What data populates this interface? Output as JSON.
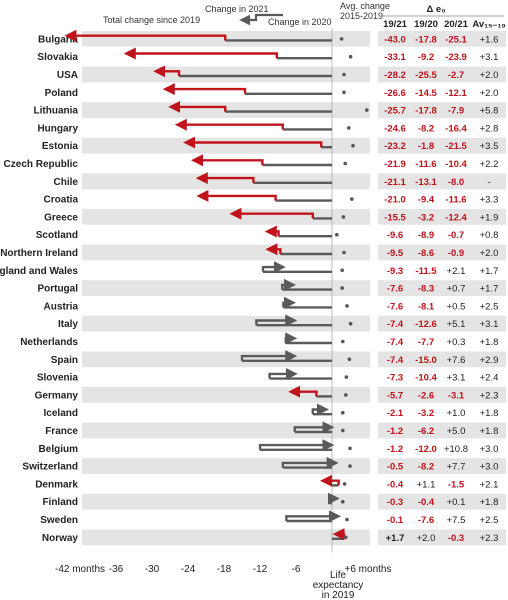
{
  "chart_data": {
    "type": "bar",
    "xlim": [
      -42,
      6
    ],
    "x_ticks": [
      {
        "value": -42,
        "label": "-42 months"
      },
      {
        "value": -36,
        "label": "-36"
      },
      {
        "value": -30,
        "label": "-30"
      },
      {
        "value": -24,
        "label": "-24"
      },
      {
        "value": -18,
        "label": "-18"
      },
      {
        "value": -12,
        "label": "-12"
      },
      {
        "value": -6,
        "label": "-6"
      },
      {
        "value": 6,
        "label": "+6 months"
      }
    ],
    "zero_label": [
      "Life",
      "expectancy",
      "in 2019"
    ],
    "legend": {
      "change_2021": "Change in 2021",
      "change_2020": "Change in 2020",
      "total_change": "Total change since 2019",
      "avg_change": [
        "Avg. change",
        "2015-2019"
      ]
    },
    "table_header": {
      "delta": "Δ e₀",
      "col1": "19/21",
      "col2": "19/20",
      "col3": "20/21",
      "col4": "Av₁₅₋₁₉"
    },
    "rows": [
      {
        "country": "Bulgaria",
        "change_2020": -17.8,
        "change_2021": -25.1,
        "total": -43.0,
        "avg": 1.6,
        "t1": "-43.0",
        "t2": "-17.8",
        "t3": "-25.1",
        "t4": "+1.6"
      },
      {
        "country": "Slovakia",
        "change_2020": -9.2,
        "change_2021": -23.9,
        "total": -33.1,
        "avg": 3.1,
        "t1": "-33.1",
        "t2": "-9.2",
        "t3": "-23.9",
        "t4": "+3.1"
      },
      {
        "country": "USA",
        "change_2020": -25.5,
        "change_2021": -2.7,
        "total": -28.2,
        "avg": 2.0,
        "t1": "-28.2",
        "t2": "-25.5",
        "t3": "-2.7",
        "t4": "+2.0"
      },
      {
        "country": "Poland",
        "change_2020": -14.5,
        "change_2021": -12.1,
        "total": -26.6,
        "avg": 2.0,
        "t1": "-26.6",
        "t2": "-14.5",
        "t3": "-12.1",
        "t4": "+2.0"
      },
      {
        "country": "Lithuania",
        "change_2020": -17.8,
        "change_2021": -7.9,
        "total": -25.7,
        "avg": 5.8,
        "t1": "-25.7",
        "t2": "-17.8",
        "t3": "-7.9",
        "t4": "+5.8"
      },
      {
        "country": "Hungary",
        "change_2020": -8.2,
        "change_2021": -16.4,
        "total": -24.6,
        "avg": 2.8,
        "t1": "-24.6",
        "t2": "-8.2",
        "t3": "-16.4",
        "t4": "+2.8"
      },
      {
        "country": "Estonia",
        "change_2020": -1.8,
        "change_2021": -21.5,
        "total": -23.2,
        "avg": 3.5,
        "t1": "-23.2",
        "t2": "-1.8",
        "t3": "-21.5",
        "t4": "+3.5"
      },
      {
        "country": "Czech Republic",
        "change_2020": -11.6,
        "change_2021": -10.4,
        "total": -21.9,
        "avg": 2.2,
        "t1": "-21.9",
        "t2": "-11.6",
        "t3": "-10.4",
        "t4": "+2.2"
      },
      {
        "country": "Chile",
        "change_2020": -13.1,
        "change_2021": -8.0,
        "total": -21.1,
        "avg": null,
        "t1": "-21.1",
        "t2": "-13.1",
        "t3": "-8.0",
        "t4": "-"
      },
      {
        "country": "Croatia",
        "change_2020": -9.4,
        "change_2021": -11.6,
        "total": -21.0,
        "avg": 3.3,
        "t1": "-21.0",
        "t2": "-9.4",
        "t3": "-11.6",
        "t4": "+3.3"
      },
      {
        "country": "Greece",
        "change_2020": -3.2,
        "change_2021": -12.4,
        "total": -15.5,
        "avg": 1.9,
        "t1": "-15.5",
        "t2": "-3.2",
        "t3": "-12.4",
        "t4": "+1.9"
      },
      {
        "country": "Scotland",
        "change_2020": -8.9,
        "change_2021": -0.7,
        "total": -9.6,
        "avg": 0.8,
        "t1": "-9.6",
        "t2": "-8.9",
        "t3": "-0.7",
        "t4": "+0.8"
      },
      {
        "country": "Northern Ireland",
        "change_2020": -8.6,
        "change_2021": -0.9,
        "total": -9.5,
        "avg": 2.0,
        "t1": "-9.5",
        "t2": "-8.6",
        "t3": "-0.9",
        "t4": "+2.0"
      },
      {
        "country": "England and Wales",
        "change_2020": -11.5,
        "change_2021": 2.1,
        "total": -9.3,
        "avg": 1.7,
        "t1": "-9.3",
        "t2": "-11.5",
        "t3": "+2.1",
        "t4": "+1.7"
      },
      {
        "country": "Portugal",
        "change_2020": -8.3,
        "change_2021": 0.7,
        "total": -7.6,
        "avg": 1.7,
        "t1": "-7.6",
        "t2": "-8.3",
        "t3": "+0.7",
        "t4": "+1.7"
      },
      {
        "country": "Austria",
        "change_2020": -8.1,
        "change_2021": 0.5,
        "total": -7.6,
        "avg": 2.5,
        "t1": "-7.6",
        "t2": "-8.1",
        "t3": "+0.5",
        "t4": "+2.5"
      },
      {
        "country": "Italy",
        "change_2020": -12.6,
        "change_2021": 5.1,
        "total": -7.4,
        "avg": 3.1,
        "t1": "-7.4",
        "t2": "-12.6",
        "t3": "+5.1",
        "t4": "+3.1"
      },
      {
        "country": "Netherlands",
        "change_2020": -7.7,
        "change_2021": 0.3,
        "total": -7.4,
        "avg": 1.8,
        "t1": "-7.4",
        "t2": "-7.7",
        "t3": "+0.3",
        "t4": "+1.8"
      },
      {
        "country": "Spain",
        "change_2020": -15.0,
        "change_2021": 7.6,
        "total": -7.4,
        "avg": 2.9,
        "t1": "-7.4",
        "t2": "-15.0",
        "t3": "+7.6",
        "t4": "+2.9"
      },
      {
        "country": "Slovenia",
        "change_2020": -10.4,
        "change_2021": 3.1,
        "total": -7.3,
        "avg": 2.4,
        "t1": "-7.3",
        "t2": "-10.4",
        "t3": "+3.1",
        "t4": "+2.4"
      },
      {
        "country": "Germany",
        "change_2020": -2.6,
        "change_2021": -3.1,
        "total": -5.7,
        "avg": 2.3,
        "t1": "-5.7",
        "t2": "-2.6",
        "t3": "-3.1",
        "t4": "+2.3"
      },
      {
        "country": "Iceland",
        "change_2020": -3.2,
        "change_2021": 1.0,
        "total": -2.1,
        "avg": 1.8,
        "t1": "-2.1",
        "t2": "-3.2",
        "t3": "+1.0",
        "t4": "+1.8"
      },
      {
        "country": "France",
        "change_2020": -6.2,
        "change_2021": 5.0,
        "total": -1.2,
        "avg": 1.8,
        "t1": "-1.2",
        "t2": "-6.2",
        "t3": "+5.0",
        "t4": "+1.8"
      },
      {
        "country": "Belgium",
        "change_2020": -12.0,
        "change_2021": 10.8,
        "total": -1.2,
        "avg": 3.0,
        "t1": "-1.2",
        "t2": "-12.0",
        "t3": "+10.8",
        "t4": "+3.0"
      },
      {
        "country": "Switzerland",
        "change_2020": -8.2,
        "change_2021": 7.7,
        "total": -0.5,
        "avg": 3.0,
        "t1": "-0.5",
        "t2": "-8.2",
        "t3": "+7.7",
        "t4": "+3.0"
      },
      {
        "country": "Denmark",
        "change_2020": 1.1,
        "change_2021": -1.5,
        "total": -0.4,
        "avg": 2.1,
        "t1": "-0.4",
        "t2": "+1.1",
        "t3": "-1.5",
        "t4": "+2.1"
      },
      {
        "country": "Finland",
        "change_2020": -0.4,
        "change_2021": 0.1,
        "total": -0.3,
        "avg": 1.8,
        "t1": "-0.3",
        "t2": "-0.4",
        "t3": "+0.1",
        "t4": "+1.8"
      },
      {
        "country": "Sweden",
        "change_2020": -7.6,
        "change_2021": 7.5,
        "total": -0.1,
        "avg": 2.5,
        "t1": "-0.1",
        "t2": "-7.6",
        "t3": "+7.5",
        "t4": "+2.5"
      },
      {
        "country": "Norway",
        "change_2020": 2.0,
        "change_2021": -0.3,
        "total": 1.7,
        "avg": 2.3,
        "t1": "+1.7",
        "t2": "+2.0",
        "t3": "-0.3",
        "t4": "+2.3"
      }
    ],
    "colors": {
      "change_2021": "#c0141c",
      "change_2020": "#5a5a5a",
      "stripe": "#e4e4e4",
      "negative_text": "#c0141c"
    }
  }
}
